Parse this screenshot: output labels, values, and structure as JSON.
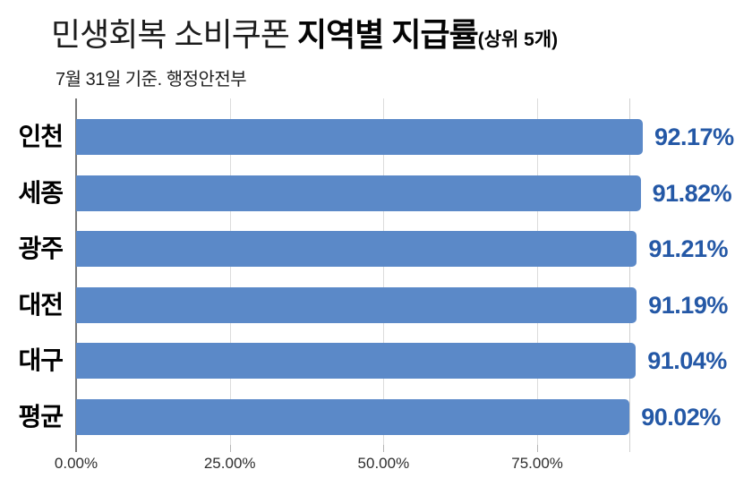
{
  "header": {
    "title_light": "민생회복 소비쿠폰 ",
    "title_bold": "지역별 지급률",
    "title_suffix": "(상위 5개)",
    "subtitle": "7월 31일 기준. 행정안전부"
  },
  "chart_data": {
    "type": "bar",
    "orientation": "horizontal",
    "title": "민생회복 소비쿠폰 지역별 지급률(상위 5개)",
    "subtitle": "7월 31일 기준. 행정안전부",
    "categories": [
      "인천",
      "세종",
      "광주",
      "대전",
      "대구",
      "평균"
    ],
    "values": [
      92.17,
      91.82,
      91.21,
      91.19,
      91.04,
      90.02
    ],
    "value_labels": [
      "92.17%",
      "91.82%",
      "91.21%",
      "91.19%",
      "91.04%",
      "90.02%"
    ],
    "xlabel": "",
    "ylabel": "",
    "xlim": [
      0,
      92.17
    ],
    "x_ticks": [
      0,
      25,
      50,
      75
    ],
    "x_tick_labels": [
      "0.00%",
      "25.00%",
      "50.00%",
      "75.00%"
    ],
    "reference_line": {
      "value": 90.02,
      "name": "average"
    },
    "grid": true,
    "legend": "none",
    "colors": {
      "bar": "#5b89c8",
      "value_text": "#2458a6",
      "category_text": "#000000",
      "grid": "#dcdcdc",
      "axis": "#7a7a7a",
      "tick_text": "#2e2e2e"
    }
  }
}
